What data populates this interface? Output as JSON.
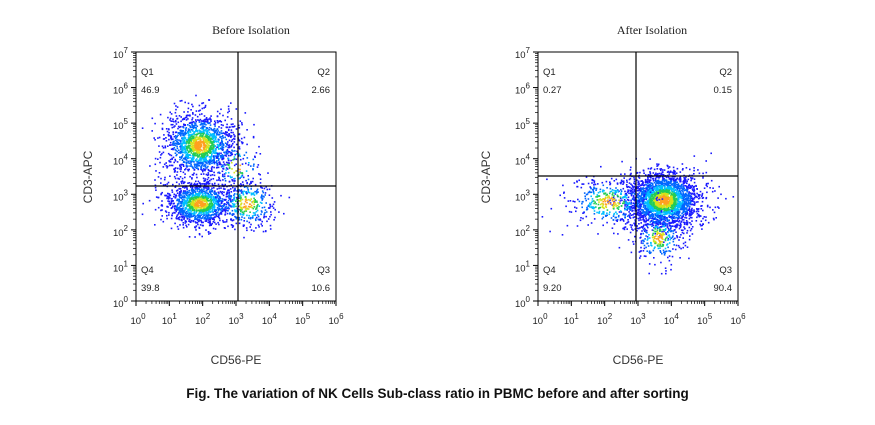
{
  "caption": "Fig. The variation of NK Cells Sub-class ratio in PBMC before and after sorting",
  "colors": {
    "axis": "#000000",
    "density": [
      "#1a1aff",
      "#0066ff",
      "#00bfff",
      "#22cc55",
      "#d6e21a",
      "#ffa020"
    ]
  },
  "chart_data": [
    {
      "type": "scatter",
      "title": "Before Isolation",
      "xlabel": "CD56-PE",
      "ylabel": "CD3-APC",
      "xlim": [
        0,
        6
      ],
      "ylim": [
        0,
        7
      ],
      "x_ticks": [
        "10^0",
        "10^1",
        "10^2",
        "10^3",
        "10^4",
        "10^5",
        "10^6"
      ],
      "y_ticks": [
        "10^0",
        "10^1",
        "10^2",
        "10^3",
        "10^4",
        "10^5",
        "10^6",
        "10^7"
      ],
      "gate": {
        "x": 2.5,
        "y": 3.35
      },
      "quadrants": [
        {
          "name": "Q1",
          "value": "46.9"
        },
        {
          "name": "Q2",
          "value": "2.66"
        },
        {
          "name": "Q3",
          "value": "10.6"
        },
        {
          "name": "Q4",
          "value": "39.8"
        }
      ],
      "populations": [
        {
          "x": 1.9,
          "y": 4.4,
          "sx": 0.55,
          "sy": 0.45,
          "n": 1500
        },
        {
          "x": 1.9,
          "y": 2.75,
          "sx": 0.5,
          "sy": 0.3,
          "n": 1300
        },
        {
          "x": 3.3,
          "y": 2.75,
          "sx": 0.45,
          "sy": 0.35,
          "n": 350
        },
        {
          "x": 3.0,
          "y": 3.8,
          "sx": 0.4,
          "sy": 0.35,
          "n": 90
        }
      ]
    },
    {
      "type": "scatter",
      "title": "After Isolation",
      "xlabel": "CD56-PE",
      "ylabel": "CD3-APC",
      "xlim": [
        0,
        6
      ],
      "ylim": [
        0,
        7
      ],
      "x_ticks": [
        "10^0",
        "10^1",
        "10^2",
        "10^3",
        "10^4",
        "10^5",
        "10^6"
      ],
      "y_ticks": [
        "10^0",
        "10^1",
        "10^2",
        "10^3",
        "10^4",
        "10^5",
        "10^6",
        "10^7"
      ],
      "gate": {
        "x": 2.5,
        "y": 3.6
      },
      "quadrants": [
        {
          "name": "Q1",
          "value": "0.27"
        },
        {
          "name": "Q2",
          "value": "0.15"
        },
        {
          "name": "Q3",
          "value": "90.4"
        },
        {
          "name": "Q4",
          "value": "9.20"
        }
      ],
      "populations": [
        {
          "x": 3.75,
          "y": 2.85,
          "sx": 0.55,
          "sy": 0.4,
          "n": 2400
        },
        {
          "x": 2.1,
          "y": 2.8,
          "sx": 0.6,
          "sy": 0.35,
          "n": 380
        },
        {
          "x": 3.6,
          "y": 1.8,
          "sx": 0.35,
          "sy": 0.35,
          "n": 250
        }
      ]
    }
  ]
}
